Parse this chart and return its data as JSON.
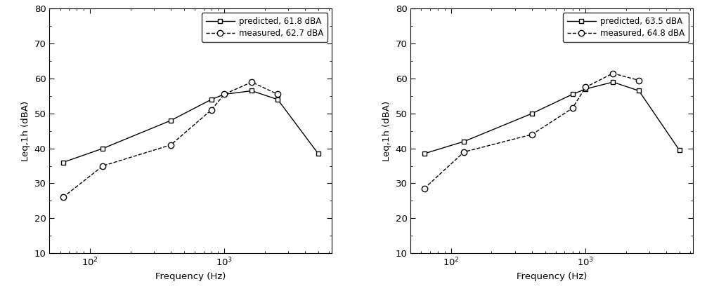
{
  "frequencies": [
    63,
    125,
    400,
    800,
    1000,
    1600,
    2500,
    5000
  ],
  "left": {
    "predicted": [
      36,
      40,
      48,
      54,
      55.5,
      56.5,
      54,
      38.5
    ],
    "measured": [
      26,
      35,
      41,
      51,
      55.5,
      59,
      55.5,
      null
    ],
    "legend_predicted": "predicted, 61.8 dBA",
    "legend_measured": "measured, 62.7 dBA"
  },
  "right": {
    "predicted": [
      38.5,
      42,
      50,
      55.5,
      57,
      59,
      56.5,
      39.5
    ],
    "measured": [
      28.5,
      39,
      44,
      51.5,
      57.5,
      61.5,
      59.5,
      null
    ],
    "legend_predicted": "predicted, 63.5 dBA",
    "legend_measured": "measured, 64.8 dBA"
  },
  "xlabel": "Frequency (Hz)",
  "ylabel": "Leq,1h (dBA)",
  "ylim": [
    10,
    80
  ],
  "yticks": [
    10,
    20,
    30,
    40,
    50,
    60,
    70,
    80
  ],
  "xlim_log": [
    50,
    6300
  ],
  "line_color": "#000000",
  "bg_color": "#ffffff",
  "fontsize": 9.5
}
